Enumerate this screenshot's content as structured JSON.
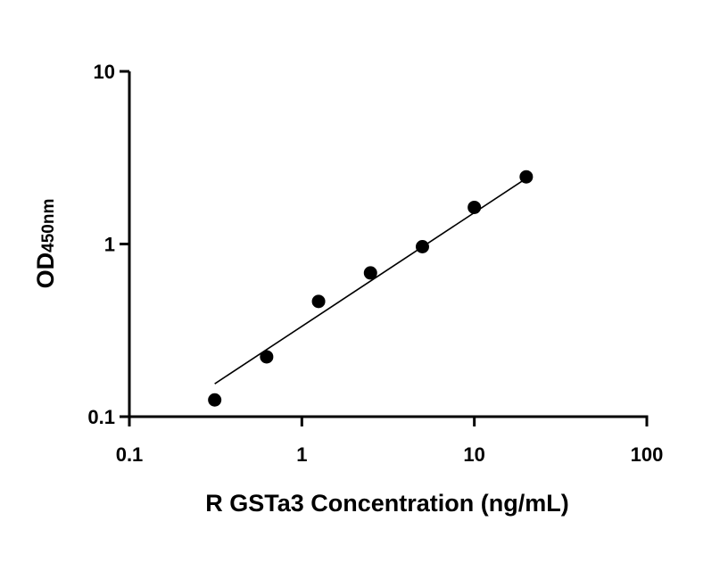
{
  "chart_data": {
    "type": "scatter",
    "xlabel": "R GSTa3 Concentration (ng/mL)",
    "ylabel_main": "OD",
    "ylabel_sub": "450nm",
    "xscale": "log",
    "yscale": "log",
    "xlim": [
      0.1,
      100
    ],
    "ylim": [
      0.1,
      10
    ],
    "x_ticks": [
      0.1,
      1,
      10,
      100
    ],
    "x_tick_labels": [
      "0.1",
      "1",
      "10",
      "100"
    ],
    "y_ticks": [
      0.1,
      1,
      10
    ],
    "y_tick_labels": [
      "0.1",
      "1",
      "10"
    ],
    "grid": false,
    "series": [
      {
        "points": [
          {
            "x": 0.3125,
            "y": 0.125
          },
          {
            "x": 0.625,
            "y": 0.222
          },
          {
            "x": 1.25,
            "y": 0.465
          },
          {
            "x": 2.5,
            "y": 0.68
          },
          {
            "x": 5,
            "y": 0.965
          },
          {
            "x": 10,
            "y": 1.63
          },
          {
            "x": 20,
            "y": 2.45
          }
        ]
      }
    ],
    "fit_line": [
      {
        "x": 0.3125,
        "y": 0.155
      },
      {
        "x": 20,
        "y": 2.4
      }
    ]
  }
}
